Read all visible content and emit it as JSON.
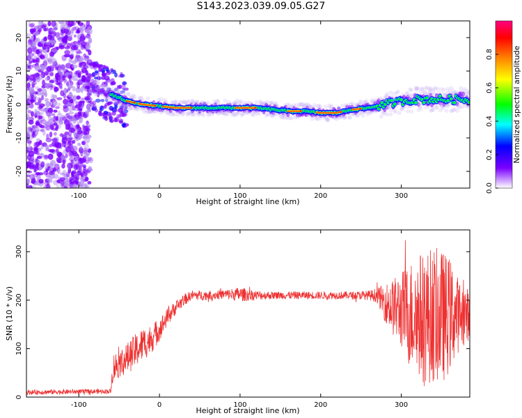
{
  "title": "S143.2023.039.09.05.G27",
  "colors": {
    "snr_line": "#ee3030",
    "axis": "#000000"
  },
  "chart_data": [
    {
      "type": "heatmap",
      "xlabel": "Height of straight line (km)",
      "ylabel": "Frequency (Hz)",
      "xlim": [
        -165,
        385
      ],
      "ylim": [
        -25,
        25
      ],
      "x_ticks": [
        -100,
        0,
        100,
        200,
        300
      ],
      "y_ticks": [
        -20,
        -10,
        0,
        10,
        20
      ],
      "colorbar": {
        "label": "Normalized spectral amplitude",
        "range": [
          0,
          1
        ],
        "ticks": [
          0.0,
          0.2,
          0.4,
          0.6,
          0.8
        ],
        "colormap": [
          "#ffffff",
          "#7b00ff",
          "#0000ff",
          "#00ffff",
          "#00ff00",
          "#ffff00",
          "#ff8000",
          "#ff0000",
          "#ff0080"
        ]
      },
      "ridge": {
        "x": [
          -80,
          -60,
          -40,
          -20,
          0,
          20,
          40,
          60,
          80,
          100,
          120,
          140,
          160,
          180,
          200,
          220,
          240,
          260,
          280,
          300,
          320,
          340,
          360,
          385
        ],
        "freq": [
          5,
          3,
          1,
          0,
          -0.5,
          -1,
          -1,
          -1,
          -1,
          -1,
          -1,
          -1.5,
          -2,
          -2,
          -2.5,
          -2.5,
          -1.5,
          -1,
          0,
          1,
          1.5,
          1.5,
          1.5,
          1.5
        ]
      }
    },
    {
      "type": "line",
      "xlabel": "Height of straight line (km)",
      "ylabel": "SNR (10 * v/v)",
      "xlim": [
        -165,
        385
      ],
      "ylim": [
        0,
        345
      ],
      "x_ticks": [
        -100,
        0,
        100,
        200,
        300
      ],
      "y_ticks": [
        0,
        100,
        200,
        300
      ],
      "envelope": {
        "x": [
          -165,
          -60,
          -58,
          -50,
          -40,
          -30,
          -20,
          -10,
          0,
          10,
          20,
          30,
          40,
          60,
          80,
          100,
          120,
          140,
          160,
          180,
          200,
          220,
          240,
          260,
          270,
          280,
          290,
          300,
          310,
          320,
          330,
          340,
          350,
          360,
          370,
          385
        ],
        "mean": [
          10,
          12,
          60,
          70,
          80,
          95,
          110,
          120,
          140,
          165,
          185,
          200,
          210,
          210,
          212,
          212,
          210,
          210,
          210,
          210,
          210,
          210,
          210,
          210,
          210,
          195,
          185,
          180,
          170,
          170,
          165,
          170,
          165,
          170,
          170,
          170
        ],
        "spread": [
          5,
          5,
          30,
          30,
          32,
          35,
          35,
          30,
          25,
          18,
          15,
          12,
          10,
          10,
          10,
          15,
          10,
          8,
          8,
          8,
          8,
          8,
          8,
          10,
          15,
          40,
          60,
          80,
          110,
          130,
          140,
          140,
          140,
          120,
          80,
          50
        ]
      }
    }
  ]
}
